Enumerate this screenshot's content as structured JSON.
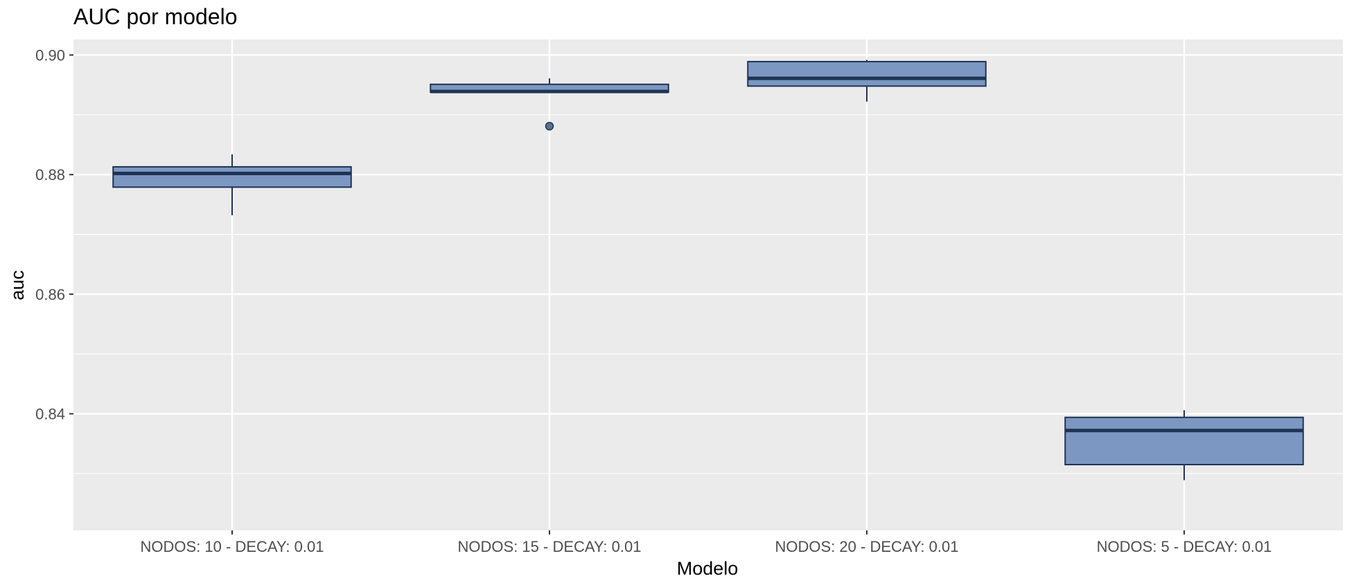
{
  "chart_data": {
    "type": "boxplot",
    "title": "AUC por modelo",
    "xlabel": "Modelo",
    "ylabel": "auc",
    "ylim": [
      0.8205,
      0.9026
    ],
    "yticks": [
      0.84,
      0.86,
      0.88,
      0.9
    ],
    "ytick_labels": [
      "0.84",
      "0.86",
      "0.88",
      "0.90"
    ],
    "grid": true,
    "legend": "none",
    "colors": {
      "panel": "#ebebeb",
      "grid": "#ffffff",
      "box_fill": "#7c97c1",
      "box_stroke": "#1f3354",
      "tick_label": "#4d4d4d"
    },
    "categories": [
      "NODOS: 10 - DECAY: 0.01",
      "NODOS: 15 - DECAY: 0.01",
      "NODOS: 20 - DECAY: 0.01",
      "NODOS: 5 - DECAY: 0.01"
    ],
    "boxes": [
      {
        "min": 0.8732,
        "q1": 0.8779,
        "median": 0.8802,
        "q3": 0.8813,
        "max": 0.8834,
        "outliers": []
      },
      {
        "min": 0.8938,
        "q1": 0.8938,
        "median": 0.8939,
        "q3": 0.8951,
        "max": 0.8961,
        "outliers": [
          0.8881
        ]
      },
      {
        "min": 0.8922,
        "q1": 0.8948,
        "median": 0.8961,
        "q3": 0.8989,
        "max": 0.8992,
        "outliers": []
      },
      {
        "min": 0.8289,
        "q1": 0.8315,
        "median": 0.8372,
        "q3": 0.8394,
        "max": 0.8406,
        "outliers": []
      }
    ]
  }
}
